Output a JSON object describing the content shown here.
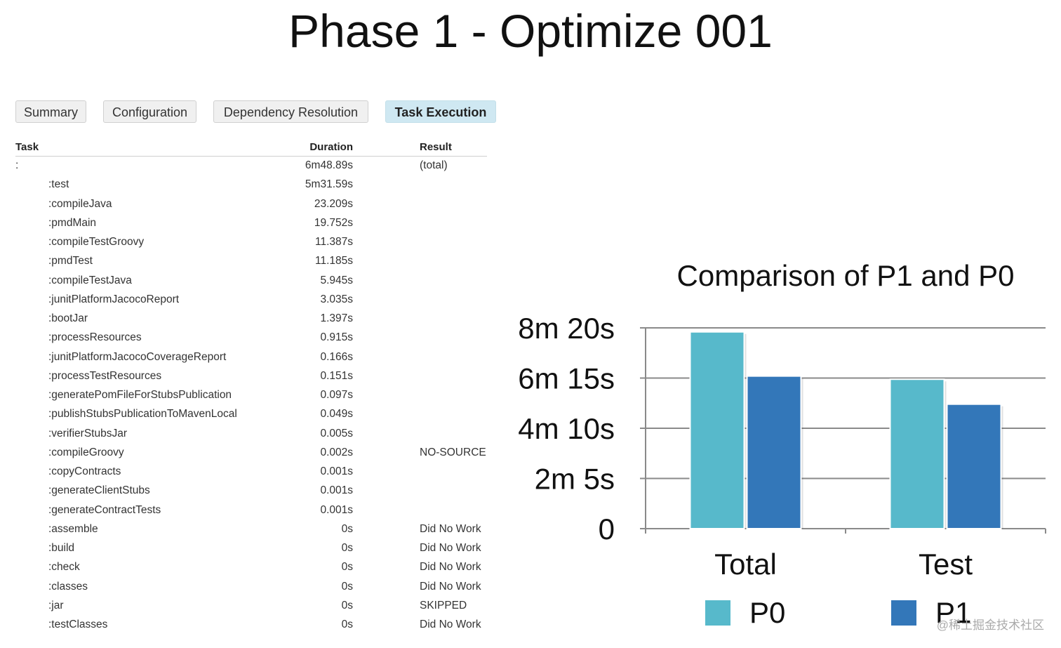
{
  "slide": {
    "title": "Phase 1 - Optimize 001"
  },
  "tabs": [
    {
      "label": "Summary",
      "active": false
    },
    {
      "label": "Configuration",
      "active": false
    },
    {
      "label": "Dependency Resolution",
      "active": false
    },
    {
      "label": "Task Execution",
      "active": true
    }
  ],
  "table": {
    "headers": {
      "task": "Task",
      "duration": "Duration",
      "result": "Result"
    },
    "rows": [
      {
        "task": ":",
        "duration": "6m48.89s",
        "result": "(total)"
      },
      {
        "task": ":test",
        "duration": "5m31.59s",
        "result": ""
      },
      {
        "task": ":compileJava",
        "duration": "23.209s",
        "result": ""
      },
      {
        "task": ":pmdMain",
        "duration": "19.752s",
        "result": ""
      },
      {
        "task": ":compileTestGroovy",
        "duration": "11.387s",
        "result": ""
      },
      {
        "task": ":pmdTest",
        "duration": "11.185s",
        "result": ""
      },
      {
        "task": ":compileTestJava",
        "duration": "5.945s",
        "result": ""
      },
      {
        "task": ":junitPlatformJacocoReport",
        "duration": "3.035s",
        "result": ""
      },
      {
        "task": ":bootJar",
        "duration": "1.397s",
        "result": ""
      },
      {
        "task": ":processResources",
        "duration": "0.915s",
        "result": ""
      },
      {
        "task": ":junitPlatformJacocoCoverageReport",
        "duration": "0.166s",
        "result": ""
      },
      {
        "task": ":processTestResources",
        "duration": "0.151s",
        "result": ""
      },
      {
        "task": ":generatePomFileForStubsPublication",
        "duration": "0.097s",
        "result": ""
      },
      {
        "task": ":publishStubsPublicationToMavenLocal",
        "duration": "0.049s",
        "result": ""
      },
      {
        "task": ":verifierStubsJar",
        "duration": "0.005s",
        "result": ""
      },
      {
        "task": ":compileGroovy",
        "duration": "0.002s",
        "result": "NO-SOURCE"
      },
      {
        "task": ":copyContracts",
        "duration": "0.001s",
        "result": ""
      },
      {
        "task": ":generateClientStubs",
        "duration": "0.001s",
        "result": ""
      },
      {
        "task": ":generateContractTests",
        "duration": "0.001s",
        "result": ""
      },
      {
        "task": ":assemble",
        "duration": "0s",
        "result": "Did No Work"
      },
      {
        "task": ":build",
        "duration": "0s",
        "result": "Did No Work"
      },
      {
        "task": ":check",
        "duration": "0s",
        "result": "Did No Work"
      },
      {
        "task": ":classes",
        "duration": "0s",
        "result": "Did No Work"
      },
      {
        "task": ":jar",
        "duration": "0s",
        "result": "SKIPPED"
      },
      {
        "task": ":testClasses",
        "duration": "0s",
        "result": "Did No Work"
      }
    ]
  },
  "chart_data": {
    "type": "bar",
    "title": "Comparison of P1 and P0",
    "categories": [
      "Total",
      "Test"
    ],
    "series": [
      {
        "name": "P0",
        "values": [
          490,
          372
        ],
        "color": "#57b9cb"
      },
      {
        "name": "P1",
        "values": [
          380,
          310
        ],
        "color": "#3377b9"
      }
    ],
    "value_unit": "seconds",
    "ylim": [
      0,
      500
    ],
    "yticks": [
      0,
      125,
      250,
      375,
      500
    ],
    "ytick_labels": [
      "0",
      "2m 5s",
      "4m 10s",
      "6m 15s",
      "8m 20s"
    ],
    "grid": true,
    "legend": "bottom"
  },
  "watermark": "@稀土掘金技术社区"
}
